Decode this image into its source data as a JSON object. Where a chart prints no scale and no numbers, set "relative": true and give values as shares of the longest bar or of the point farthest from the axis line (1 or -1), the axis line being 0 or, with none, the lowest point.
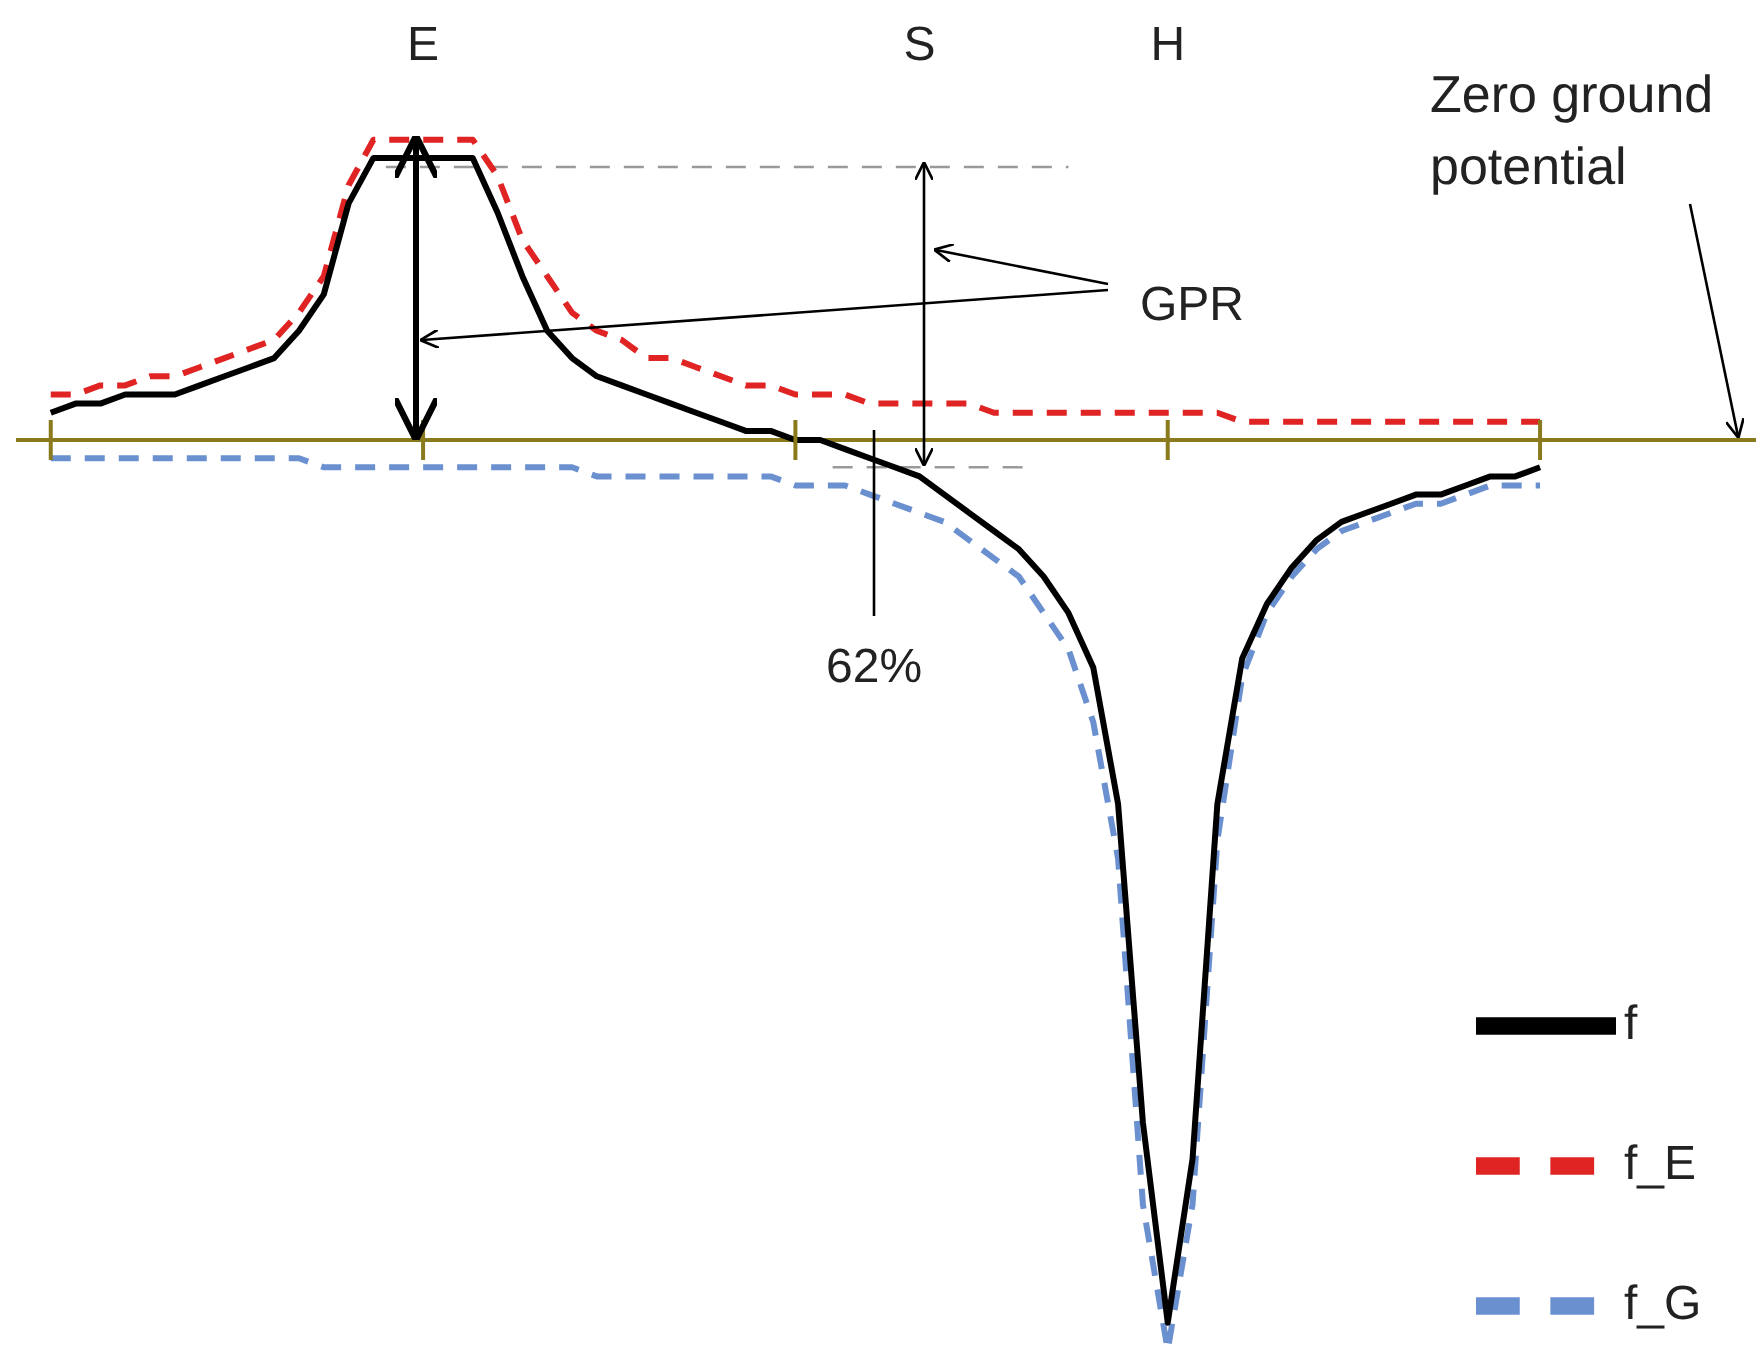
{
  "chart_data": {
    "type": "line",
    "relative": true,
    "legend": "bottom right",
    "categories": [
      null,
      null,
      null,
      null,
      null,
      null,
      null,
      null,
      null,
      null,
      null,
      null,
      null,
      null,
      null,
      "E",
      null,
      null,
      null,
      null,
      null,
      null,
      null,
      null,
      null,
      null,
      null,
      null,
      null,
      null,
      null,
      null,
      null,
      null,
      null,
      "S",
      null,
      null,
      null,
      null,
      null,
      null,
      null,
      null,
      null,
      "H",
      null,
      null,
      null,
      null,
      null,
      null,
      null,
      null,
      null,
      null,
      null,
      null,
      null,
      null,
      null
    ],
    "series": [
      {
        "name": "f_E",
        "color": "#e02424",
        "line_style": "dashed",
        "values": [
          0.05,
          0.05,
          0.06,
          0.06,
          0.07,
          0.07,
          0.08,
          0.09,
          0.1,
          0.11,
          0.14,
          0.18,
          0.28,
          0.33,
          0.33,
          0.33,
          0.33,
          0.33,
          0.29,
          0.22,
          0.18,
          0.14,
          0.12,
          0.11,
          0.09,
          0.09,
          0.08,
          0.07,
          0.06,
          0.06,
          0.05,
          0.05,
          0.05,
          0.04,
          0.04,
          0.04,
          0.04,
          0.04,
          0.03,
          0.03,
          0.03,
          0.03,
          0.03,
          0.03,
          0.03,
          0.03,
          0.03,
          0.03,
          0.02,
          0.02,
          0.02,
          0.02,
          0.02,
          0.02,
          0.02,
          0.02,
          0.02,
          0.02,
          0.02,
          0.02,
          0.02
        ]
      },
      {
        "name": "f_G",
        "color": "#6a90d0",
        "line_style": "dashed",
        "values": [
          -0.02,
          -0.02,
          -0.02,
          -0.02,
          -0.02,
          -0.02,
          -0.02,
          -0.02,
          -0.02,
          -0.02,
          -0.02,
          -0.03,
          -0.03,
          -0.03,
          -0.03,
          -0.03,
          -0.03,
          -0.03,
          -0.03,
          -0.03,
          -0.03,
          -0.03,
          -0.04,
          -0.04,
          -0.04,
          -0.04,
          -0.04,
          -0.04,
          -0.04,
          -0.04,
          -0.05,
          -0.05,
          -0.05,
          -0.06,
          -0.07,
          -0.08,
          -0.09,
          -0.11,
          -0.13,
          -0.15,
          -0.19,
          -0.23,
          -0.31,
          -0.46,
          -0.84,
          -1,
          -0.84,
          -0.44,
          -0.26,
          -0.19,
          -0.15,
          -0.12,
          -0.1,
          -0.09,
          -0.08,
          -0.07,
          -0.07,
          -0.06,
          -0.05,
          -0.05,
          -0.05
        ]
      },
      {
        "name": "f",
        "color": "#000000",
        "line_style": "solid",
        "values": [
          0.03,
          0.04,
          0.04,
          0.05,
          0.05,
          0.05,
          0.06,
          0.07,
          0.08,
          0.09,
          0.12,
          0.16,
          0.26,
          0.31,
          0.31,
          0.31,
          0.31,
          0.31,
          0.25,
          0.18,
          0.12,
          0.09,
          0.07,
          0.06,
          0.05,
          0.04,
          0.03,
          0.02,
          0.01,
          0.01,
          0.0,
          0.0,
          -0.01,
          -0.02,
          -0.03,
          -0.04,
          -0.06,
          -0.08,
          -0.1,
          -0.12,
          -0.15,
          -0.19,
          -0.25,
          -0.4,
          -0.75,
          -0.97,
          -0.79,
          -0.4,
          -0.24,
          -0.18,
          -0.14,
          -0.11,
          -0.09,
          -0.08,
          -0.07,
          -0.06,
          -0.06,
          -0.05,
          -0.04,
          -0.04,
          -0.03
        ]
      }
    ],
    "ref_lines": [
      {
        "axis": "y",
        "value": 0,
        "label": "Zero ground potential",
        "color": "#8a7a1e",
        "line_style": "solid"
      },
      {
        "axis": "y",
        "value": 0.3,
        "label": null,
        "color": "#999999",
        "line_style": "dashed"
      },
      {
        "axis": "y",
        "value": -0.03,
        "label": null,
        "color": "#999999",
        "line_style": "dashed"
      }
    ],
    "annotations": [
      "GPR",
      "62%"
    ]
  }
}
